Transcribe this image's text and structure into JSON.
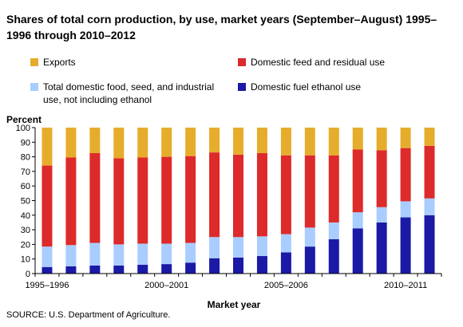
{
  "title": "Shares of total corn production, by use, market years (September–August) 1995–1996 through 2010–2012",
  "source": "SOURCE: U.S. Department of Agriculture.",
  "chart_data": {
    "type": "bar",
    "stacked": true,
    "title": "Shares of total corn production, by use, market years (September–August) 1995–1996 through 2010–2012",
    "xlabel": "Market year",
    "ylabel": "Percent",
    "ylim": [
      0,
      100
    ],
    "yticks": [
      0,
      10,
      20,
      30,
      40,
      50,
      60,
      70,
      80,
      90,
      100
    ],
    "xtick_labels": [
      "1995–1996",
      "2000–2001",
      "2005–2006",
      "2010–2011"
    ],
    "xtick_indices": [
      0,
      5,
      10,
      15
    ],
    "grid": false,
    "legend_position": "top",
    "categories": [
      "1995–1996",
      "1996–1997",
      "1997–1998",
      "1998–1999",
      "1999–2000",
      "2000–2001",
      "2001–2002",
      "2002–2003",
      "2003–2004",
      "2004–2005",
      "2005–2006",
      "2006–2007",
      "2007–2008",
      "2008–2009",
      "2009–2010",
      "2010–2011",
      "2011–2012"
    ],
    "series": [
      {
        "name": "Domestic fuel ethanol use",
        "color": "#1a1aa6",
        "values": [
          4.5,
          5,
          5.5,
          5.5,
          6,
          6.5,
          7.5,
          10.5,
          11,
          12,
          14.5,
          18.5,
          23.5,
          31,
          35,
          38.5,
          40
        ]
      },
      {
        "name": "Total domestic food, seed, and industrial use, not including ethanol",
        "color": "#aacdff",
        "values": [
          14,
          14.5,
          15.5,
          14.5,
          14.5,
          14,
          13.5,
          14.5,
          14,
          13.5,
          12.5,
          13,
          11.5,
          11,
          10.5,
          11,
          11.5
        ]
      },
      {
        "name": "Domestic feed and residual use",
        "color": "#dd2a2a",
        "values": [
          55.5,
          60,
          61.5,
          59,
          59,
          59.5,
          59.5,
          58,
          56.5,
          57,
          54,
          49.5,
          46,
          43,
          39,
          36.5,
          36
        ]
      },
      {
        "name": "Exports",
        "color": "#e6ad2d",
        "values": [
          26,
          20.5,
          17.5,
          21,
          20.5,
          20,
          19.5,
          17,
          18.5,
          17.5,
          19,
          19,
          19,
          15,
          15.5,
          14,
          12.5
        ]
      }
    ]
  }
}
